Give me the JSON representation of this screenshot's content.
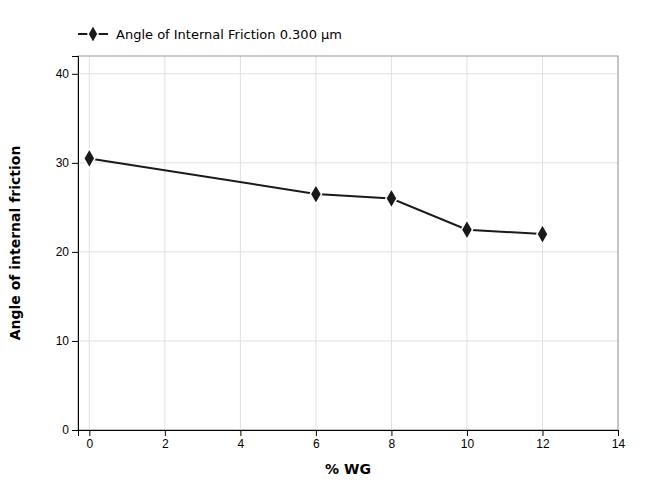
{
  "chart_data": {
    "type": "line",
    "x": [
      0,
      6,
      8,
      10,
      12
    ],
    "series": [
      {
        "name": "Angle of Internal Friction 0.300 μm",
        "color": "#1a1a1a",
        "marker": "diamond",
        "values": [
          30.5,
          26.5,
          26.0,
          22.5,
          22.0
        ]
      }
    ],
    "xlabel": "% WG",
    "ylabel": "Angle of internal friction",
    "xlim": [
      -0.3,
      14
    ],
    "ylim": [
      0,
      42
    ],
    "xticks": [
      0,
      2,
      4,
      6,
      8,
      10,
      12,
      14
    ],
    "yticks": [
      0,
      10,
      20,
      30,
      40
    ],
    "grid": true,
    "legend": "upper left"
  }
}
